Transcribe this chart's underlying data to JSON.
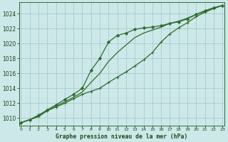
{
  "title": "Graphe pression niveau de la mer (hPa)",
  "bg_color": "#cce8e8",
  "line_color": "#2d6b2d",
  "grid_color": "#aacccc",
  "grid_color2": "#b8d8d8",
  "series_upper": [
    1009.4,
    1009.8,
    1010.4,
    1011.1,
    1011.8,
    1012.5,
    1013.2,
    1014.0,
    1016.4,
    1018.0,
    1020.2,
    1021.1,
    1021.4,
    1021.9,
    1022.1,
    1022.2,
    1022.4,
    1022.7,
    1022.9,
    1023.3,
    1023.9,
    1024.4,
    1024.8,
    1025.1
  ],
  "series_lower": [
    1009.4,
    1009.8,
    1010.2,
    1011.0,
    1011.5,
    1012.0,
    1012.6,
    1013.2,
    1013.6,
    1014.0,
    1014.8,
    1015.5,
    1016.2,
    1017.0,
    1017.8,
    1018.8,
    1020.2,
    1021.3,
    1022.1,
    1022.8,
    1023.6,
    1024.2,
    1024.7,
    1025.1
  ],
  "series_mid": [
    1009.4,
    1009.8,
    1010.3,
    1011.0,
    1011.6,
    1012.2,
    1012.8,
    1013.5,
    1014.8,
    1016.0,
    1017.6,
    1018.8,
    1019.8,
    1020.8,
    1021.4,
    1021.8,
    1022.2,
    1022.7,
    1023.0,
    1023.4,
    1023.9,
    1024.3,
    1024.7,
    1025.1
  ],
  "ylim_min": 1009.0,
  "ylim_max": 1025.5,
  "yticks": [
    1010,
    1012,
    1014,
    1016,
    1018,
    1020,
    1022,
    1024
  ],
  "xlim_min": -0.2,
  "xlim_max": 23.2,
  "xticks": [
    0,
    1,
    2,
    3,
    4,
    5,
    6,
    7,
    8,
    9,
    10,
    11,
    12,
    13,
    14,
    15,
    16,
    17,
    18,
    19,
    20,
    21,
    22,
    23
  ]
}
